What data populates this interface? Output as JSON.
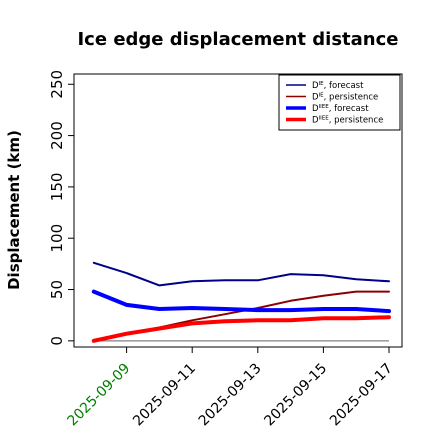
{
  "chart_data": {
    "type": "line",
    "title": "Ice edge displacement distance",
    "xlabel": "",
    "ylabel": "Displacement (km)",
    "ylim": [
      -6,
      260
    ],
    "yticks": [
      0,
      50,
      100,
      150,
      200,
      250
    ],
    "x": [
      "2025-09-08",
      "2025-09-09",
      "2025-09-10",
      "2025-09-11",
      "2025-09-12",
      "2025-09-13",
      "2025-09-14",
      "2025-09-15",
      "2025-09-16",
      "2025-09-17"
    ],
    "xlim": [
      "2025-09-07",
      "2025-09-17"
    ],
    "xtick_labels": [
      "2025-09-09",
      "2025-09-11",
      "2025-09-13",
      "2025-09-15",
      "2025-09-17"
    ],
    "xtick_highlight": "2025-09-09",
    "xtick_highlight_color": "#008000",
    "grid": false,
    "legend_position": "top-right",
    "series": [
      {
        "name": "D^IE, forecast",
        "color": "#00008b",
        "width": 2,
        "values": [
          76,
          66,
          54,
          58,
          59,
          59,
          65,
          64,
          60,
          58
        ]
      },
      {
        "name": "D^IE, persistence",
        "color": "#8b0000",
        "width": 2,
        "values": [
          1,
          7,
          13,
          20,
          26,
          32,
          39,
          44,
          48,
          48
        ]
      },
      {
        "name": "D^IIEE, forecast",
        "color": "#0000ff",
        "width": 4,
        "values": [
          48,
          35,
          31,
          32,
          31,
          30,
          30,
          31,
          31,
          29
        ]
      },
      {
        "name": "D^IIEE, persistence",
        "color": "#ff0000",
        "width": 4,
        "values": [
          0,
          7,
          12,
          17,
          19,
          20,
          20,
          22,
          22,
          23
        ]
      }
    ],
    "reference_line": {
      "value": 0,
      "color": "#808080"
    }
  }
}
